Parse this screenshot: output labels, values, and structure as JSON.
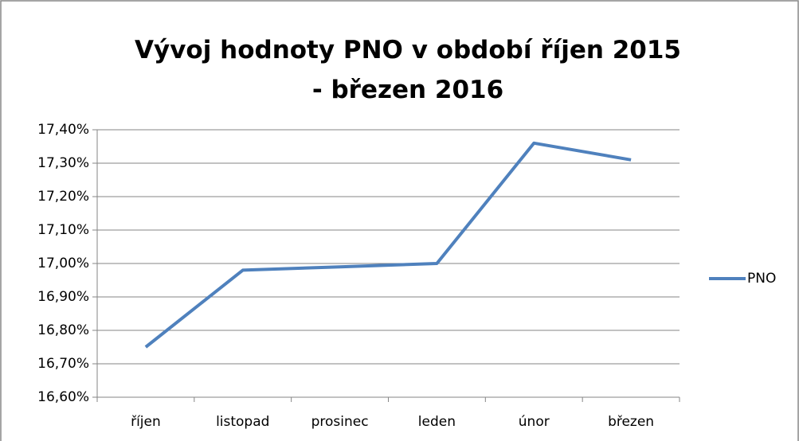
{
  "chart_data": {
    "type": "line",
    "title": "Vývoj hodnoty PNO v období říjen 2015 - březen 2016",
    "categories": [
      "říjen",
      "listopad",
      "prosinec",
      "leden",
      "únor",
      "březen"
    ],
    "series": [
      {
        "name": "PNO",
        "color": "#4f81bd",
        "values": [
          16.75,
          16.98,
          16.99,
          17.0,
          17.36,
          17.31
        ]
      }
    ],
    "ylim": [
      16.6,
      17.4
    ],
    "yticks": [
      {
        "value": 16.6,
        "label": "16,60%"
      },
      {
        "value": 16.7,
        "label": "16,70%"
      },
      {
        "value": 16.8,
        "label": "16,80%"
      },
      {
        "value": 16.9,
        "label": "16,90%"
      },
      {
        "value": 17.0,
        "label": "17,00%"
      },
      {
        "value": 17.1,
        "label": "17,10%"
      },
      {
        "value": 17.2,
        "label": "17,20%"
      },
      {
        "value": 17.3,
        "label": "17,30%"
      },
      {
        "value": 17.4,
        "label": "17,40%"
      }
    ],
    "grid": true,
    "legend": "right"
  }
}
